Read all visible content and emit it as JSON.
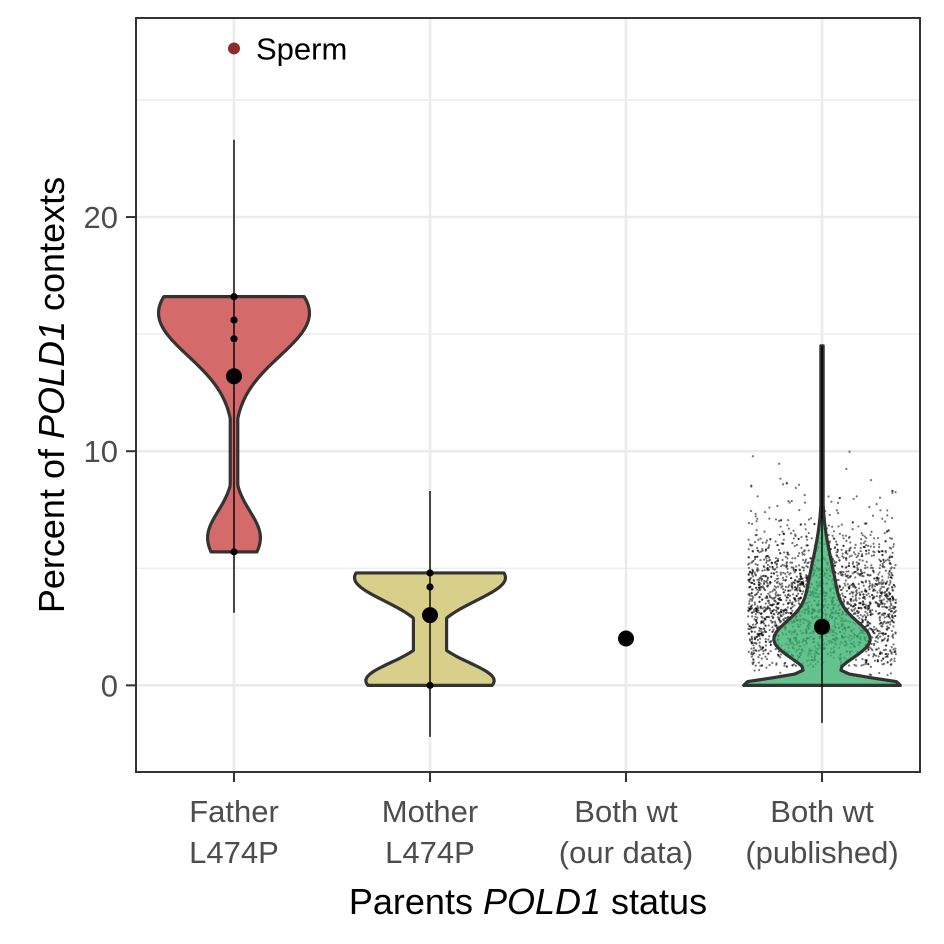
{
  "chart_data": {
    "type": "violin",
    "xlabel_parts": [
      {
        "text": "Parents ",
        "italic": false
      },
      {
        "text": "POLD1",
        "italic": true
      },
      {
        "text": " status",
        "italic": false
      }
    ],
    "ylabel_parts": [
      {
        "text": "Percent of ",
        "italic": false
      },
      {
        "text": "POLD1",
        "italic": true
      },
      {
        "text": " contexts",
        "italic": false
      }
    ],
    "ylim": [
      -3.7,
      28.5
    ],
    "yticks": [
      0,
      10,
      20
    ],
    "ytick_labels": [
      "0",
      "10",
      "20"
    ],
    "grid": true,
    "colors": {
      "father": "#d46a6a",
      "mother": "#d8d08a",
      "published": "#3cb371",
      "violin_outline": "#333333",
      "annotation_point": "#8b2e2e"
    },
    "categories": [
      {
        "label_lines": [
          "Father",
          "L474P"
        ],
        "color": "#d46a6a",
        "median": 13.2,
        "whisker": [
          3.1,
          23.3
        ],
        "violin_range": [
          5.7,
          16.6
        ],
        "points": [
          5.7,
          13.2,
          14.8,
          15.6,
          16.6
        ],
        "annotation": {
          "value": 27.2,
          "label": "Sperm"
        }
      },
      {
        "label_lines": [
          "Mother",
          "L474P"
        ],
        "color": "#d8d08a",
        "median": 3.0,
        "whisker": [
          -2.2,
          8.3
        ],
        "violin_range": [
          0.0,
          4.8
        ],
        "points": [
          0.0,
          3.0,
          4.2,
          4.8
        ]
      },
      {
        "label_lines": [
          "Both wt",
          "(our data)"
        ],
        "color": "#000000",
        "median": 2.0,
        "whisker": null,
        "violin_range": null,
        "points": [
          2.0
        ]
      },
      {
        "label_lines": [
          "Both wt",
          "(published)"
        ],
        "color": "#3cb371",
        "median": 2.5,
        "whisker": [
          -1.6,
          14.5
        ],
        "violin_range": [
          0.0,
          14.5
        ],
        "points": []
      }
    ]
  }
}
